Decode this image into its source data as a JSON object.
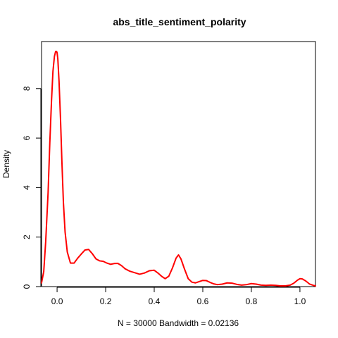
{
  "chart_data": {
    "type": "line",
    "title": "abs_title_sentiment_polarity",
    "xlabel": "N = 30000   Bandwidth = 0.02136",
    "ylabel": "Density",
    "xlim": [
      -0.064,
      1.064
    ],
    "ylim": [
      0,
      9.9
    ],
    "x_ticks": [
      0.0,
      0.2,
      0.4,
      0.6,
      0.8,
      1.0
    ],
    "x_tick_labels": [
      "0.0",
      "0.2",
      "0.4",
      "0.6",
      "0.8",
      "1.0"
    ],
    "y_ticks": [
      0,
      2,
      4,
      6,
      8
    ],
    "y_tick_labels": [
      "0",
      "2",
      "4",
      "6",
      "8"
    ],
    "line_color": "#ff0000",
    "series": [
      {
        "x": [
          -0.064,
          -0.055,
          -0.047,
          -0.037,
          -0.03,
          -0.023,
          -0.017,
          -0.011,
          -0.006,
          -0.002,
          0.0,
          0.003,
          0.008,
          0.014,
          0.02,
          0.026,
          0.033,
          0.042,
          0.055,
          0.07,
          0.085,
          0.1,
          0.115,
          0.13,
          0.145,
          0.16,
          0.175,
          0.19,
          0.205,
          0.22,
          0.235,
          0.25,
          0.265,
          0.28,
          0.3,
          0.32,
          0.34,
          0.36,
          0.38,
          0.4,
          0.415,
          0.43,
          0.445,
          0.46,
          0.475,
          0.49,
          0.5,
          0.51,
          0.525,
          0.54,
          0.555,
          0.57,
          0.585,
          0.6,
          0.615,
          0.63,
          0.645,
          0.66,
          0.68,
          0.7,
          0.72,
          0.74,
          0.76,
          0.78,
          0.8,
          0.82,
          0.84,
          0.86,
          0.88,
          0.9,
          0.92,
          0.94,
          0.96,
          0.975,
          0.99,
          1.0,
          1.01,
          1.025,
          1.04,
          1.055,
          1.064
        ],
        "y": [
          0.15,
          0.6,
          1.8,
          3.8,
          5.8,
          7.5,
          8.7,
          9.3,
          9.5,
          9.5,
          9.45,
          9.2,
          8.3,
          6.8,
          5.0,
          3.4,
          2.2,
          1.4,
          0.95,
          0.95,
          1.15,
          1.32,
          1.48,
          1.5,
          1.33,
          1.12,
          1.04,
          1.02,
          0.95,
          0.9,
          0.93,
          0.94,
          0.85,
          0.72,
          0.62,
          0.56,
          0.5,
          0.55,
          0.64,
          0.66,
          0.55,
          0.42,
          0.32,
          0.42,
          0.75,
          1.15,
          1.28,
          1.12,
          0.7,
          0.32,
          0.18,
          0.15,
          0.2,
          0.25,
          0.24,
          0.17,
          0.11,
          0.08,
          0.1,
          0.15,
          0.14,
          0.09,
          0.06,
          0.08,
          0.12,
          0.1,
          0.06,
          0.05,
          0.06,
          0.05,
          0.03,
          0.03,
          0.06,
          0.14,
          0.26,
          0.32,
          0.31,
          0.22,
          0.1,
          0.05,
          0.03
        ]
      }
    ]
  }
}
